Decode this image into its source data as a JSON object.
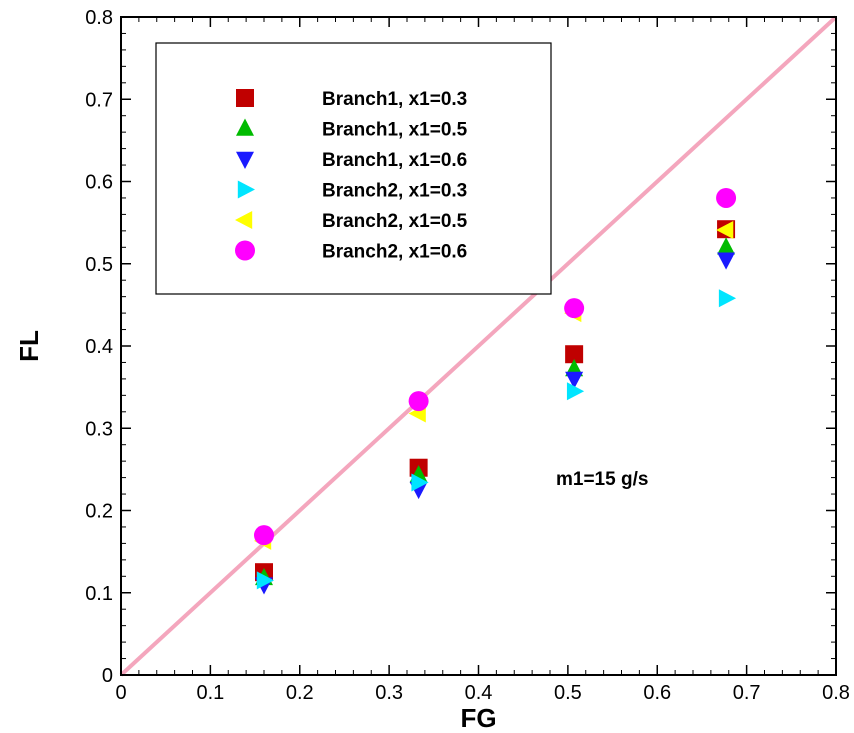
{
  "chart_data": {
    "type": "scatter",
    "xlabel": "FG",
    "ylabel": "FL",
    "xlim": [
      0,
      0.8
    ],
    "ylim": [
      0,
      0.8
    ],
    "x_ticks": [
      "0",
      "0.1",
      "0.2",
      "0.3",
      "0.4",
      "0.5",
      "0.6",
      "0.7",
      "0.8"
    ],
    "y_ticks": [
      "0",
      "0.1",
      "0.2",
      "0.3",
      "0.4",
      "0.5",
      "0.6",
      "0.7",
      "0.8"
    ],
    "grid": false,
    "legend_position": "top-left",
    "annotation": "m1=15 g/s",
    "reference_line": {
      "from": [
        0,
        0
      ],
      "to": [
        0.8,
        0.8
      ],
      "color": "#f4a6bd"
    },
    "series": [
      {
        "name": "Branch1, x1=0.3",
        "marker": "square",
        "color": "#c00000",
        "x": [
          0.16,
          0.333,
          0.507,
          0.677
        ],
        "y": [
          0.125,
          0.252,
          0.39,
          0.542
        ]
      },
      {
        "name": "Branch1, x1=0.5",
        "marker": "triangle-up",
        "color": "#00bb00",
        "x": [
          0.16,
          0.333,
          0.507,
          0.677
        ],
        "y": [
          0.118,
          0.243,
          0.372,
          0.52
        ]
      },
      {
        "name": "Branch1, x1=0.6",
        "marker": "triangle-down",
        "color": "#1a1aff",
        "x": [
          0.16,
          0.333,
          0.507,
          0.677
        ],
        "y": [
          0.11,
          0.226,
          0.36,
          0.505
        ]
      },
      {
        "name": "Branch2, x1=0.3",
        "marker": "triangle-right",
        "color": "#00e5ff",
        "x": [
          0.16,
          0.333,
          0.507,
          0.677
        ],
        "y": [
          0.115,
          0.234,
          0.345,
          0.458
        ]
      },
      {
        "name": "Branch2, x1=0.5",
        "marker": "triangle-left",
        "color": "#ffff00",
        "x": [
          0.16,
          0.333,
          0.507,
          0.677
        ],
        "y": [
          0.163,
          0.318,
          0.44,
          0.541
        ]
      },
      {
        "name": "Branch2, x1=0.6",
        "marker": "circle",
        "color": "#ff00ff",
        "x": [
          0.16,
          0.333,
          0.507,
          0.677
        ],
        "y": [
          0.17,
          0.333,
          0.446,
          0.58
        ]
      }
    ]
  }
}
